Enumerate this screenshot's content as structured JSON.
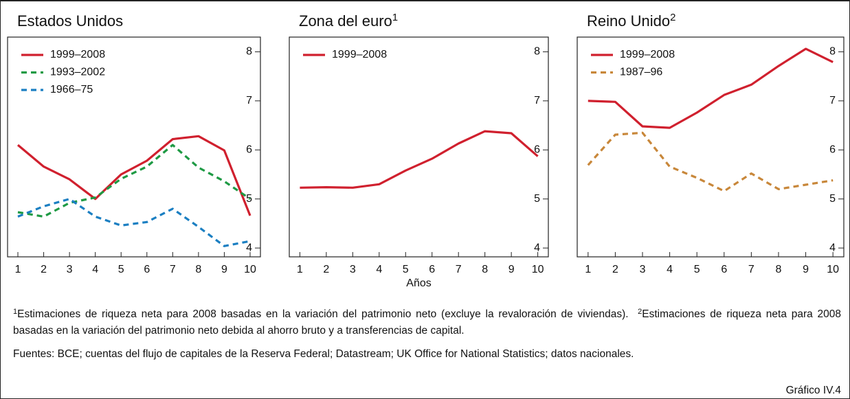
{
  "chart_data": [
    {
      "type": "line",
      "title": "Estados Unidos",
      "x": [
        1,
        2,
        3,
        4,
        5,
        6,
        7,
        8,
        9,
        10
      ],
      "xlim": [
        0.6,
        10.4
      ],
      "xticks": [
        1,
        2,
        3,
        4,
        5,
        6,
        7,
        8,
        9,
        10
      ],
      "ylim": [
        3.82,
        8.3
      ],
      "yticks": [
        4,
        5,
        6,
        7,
        8
      ],
      "series": [
        {
          "name": "1999–2008",
          "color": "#d0202e",
          "dash": "solid",
          "values": [
            6.1,
            5.66,
            5.4,
            5.0,
            5.5,
            5.78,
            6.22,
            6.28,
            5.99,
            4.66
          ]
        },
        {
          "name": "1993–2002",
          "color": "#1e9a44",
          "dash": "dashed",
          "values": [
            4.73,
            4.64,
            4.92,
            5.03,
            5.41,
            5.66,
            6.1,
            5.64,
            5.36,
            5.0
          ]
        },
        {
          "name": "1966–75",
          "color": "#1b7fc2",
          "dash": "dashed",
          "values": [
            4.64,
            4.85,
            5.0,
            4.64,
            4.46,
            4.53,
            4.8,
            4.43,
            4.04,
            4.14
          ]
        }
      ]
    },
    {
      "type": "line",
      "title": "Zona del euro",
      "title_note": "1",
      "xlabel": "Años",
      "x": [
        1,
        2,
        3,
        4,
        5,
        6,
        7,
        8,
        9,
        10
      ],
      "xlim": [
        0.6,
        10.4
      ],
      "xticks": [
        1,
        2,
        3,
        4,
        5,
        6,
        7,
        8,
        9,
        10
      ],
      "ylim": [
        3.82,
        8.3
      ],
      "yticks": [
        4,
        5,
        6,
        7,
        8
      ],
      "series": [
        {
          "name": "1999–2008",
          "color": "#d0202e",
          "dash": "solid",
          "values": [
            5.23,
            5.24,
            5.23,
            5.3,
            5.58,
            5.82,
            6.13,
            6.38,
            6.34,
            5.87
          ]
        }
      ]
    },
    {
      "type": "line",
      "title": "Reino Unido",
      "title_note": "2",
      "x": [
        1,
        2,
        3,
        4,
        5,
        6,
        7,
        8,
        9,
        10
      ],
      "xlim": [
        0.6,
        10.4
      ],
      "xticks": [
        1,
        2,
        3,
        4,
        5,
        6,
        7,
        8,
        9,
        10
      ],
      "ylim": [
        3.82,
        8.3
      ],
      "yticks": [
        4,
        5,
        6,
        7,
        8
      ],
      "series": [
        {
          "name": "1999–2008",
          "color": "#d0202e",
          "dash": "solid",
          "values": [
            7.0,
            6.98,
            6.48,
            6.45,
            6.76,
            7.12,
            7.33,
            7.71,
            8.06,
            7.79
          ]
        },
        {
          "name": "1987–96",
          "color": "#c8873a",
          "dash": "dashed",
          "values": [
            5.69,
            6.31,
            6.35,
            5.66,
            5.43,
            5.16,
            5.52,
            5.2,
            5.29,
            5.38
          ]
        }
      ]
    }
  ],
  "notes": [
    {
      "marker": "1",
      "text": "Estimaciones de riqueza neta para 2008 basadas en la variación del patrimonio neto (excluye la revaloración de viviendas)."
    },
    {
      "marker": "2",
      "text": "Estimaciones de riqueza neta para 2008 basadas en la variación del patrimonio neto debida al ahorro bruto y a transferencias de capital."
    }
  ],
  "sources": "Fuentes: BCE; cuentas del flujo de capitales de la Reserva Federal; Datastream; UK Office for National Statistics; datos nacionales.",
  "figure_label": "Gráfico IV.4"
}
